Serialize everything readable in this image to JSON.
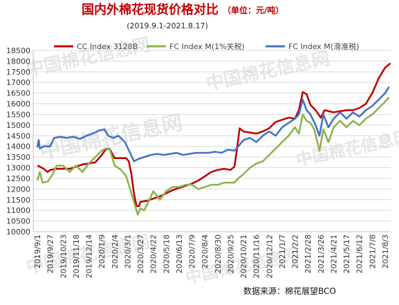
{
  "chart_data": {
    "type": "line",
    "title": "国内外棉花现货价格对比",
    "unit": "（单位：元/吨）",
    "subtitle": "(2019.9.1-2021.8.17)",
    "source": "数据来源：棉花展望BCO",
    "watermark": "中国棉花信息网",
    "ylim": [
      10000,
      18500
    ],
    "yticks": [
      10000,
      10500,
      11000,
      11500,
      12000,
      12500,
      13000,
      13500,
      14000,
      14500,
      15000,
      15500,
      16000,
      16500,
      17000,
      17500,
      18000,
      18500
    ],
    "x_tick_labels": [
      "2019/9/1",
      "2019/9/27",
      "2019/10/23",
      "2019/11/18",
      "2019/12/14",
      "2020/1/9",
      "2020/2/4",
      "2020/3/1",
      "2020/3/27",
      "2020/4/22",
      "2020/5/18",
      "2020/6/13",
      "2020/7/9",
      "2020/8/4",
      "2020/8/30",
      "2020/9/25",
      "2020/10/21",
      "2020/11/16",
      "2020/12/12",
      "2021/1/7",
      "2021/2/2",
      "2021/2/28",
      "2021/3/26",
      "2021/4/21",
      "2021/5/17",
      "2021/6/12",
      "2021/7/8",
      "2021/8/3"
    ],
    "grid": true,
    "legend_position": "top",
    "series": [
      {
        "name": "CC Index 3128B",
        "color": "#c00000",
        "points": [
          [
            0,
            13100
          ],
          [
            0.2,
            13050
          ],
          [
            0.5,
            12950
          ],
          [
            0.8,
            12800
          ],
          [
            1.0,
            12900
          ],
          [
            1.5,
            12950
          ],
          [
            2.0,
            12950
          ],
          [
            2.5,
            12950
          ],
          [
            3.0,
            13050
          ],
          [
            3.5,
            13150
          ],
          [
            4.0,
            13200
          ],
          [
            4.5,
            13250
          ],
          [
            5.0,
            13600
          ],
          [
            5.3,
            13850
          ],
          [
            5.6,
            13900
          ],
          [
            6.0,
            13450
          ],
          [
            6.5,
            13450
          ],
          [
            6.9,
            13450
          ],
          [
            7.1,
            13300
          ],
          [
            7.3,
            12700
          ],
          [
            7.5,
            11800
          ],
          [
            7.7,
            11200
          ],
          [
            7.9,
            11200
          ],
          [
            8.0,
            11400
          ],
          [
            8.5,
            11450
          ],
          [
            9.0,
            11550
          ],
          [
            9.5,
            11650
          ],
          [
            10.0,
            11800
          ],
          [
            10.5,
            11950
          ],
          [
            11.0,
            12050
          ],
          [
            11.5,
            12150
          ],
          [
            12.0,
            12250
          ],
          [
            12.5,
            12400
          ],
          [
            13.0,
            12600
          ],
          [
            13.5,
            12800
          ],
          [
            14.0,
            12900
          ],
          [
            14.5,
            12950
          ],
          [
            15.0,
            12900
          ],
          [
            15.3,
            13050
          ],
          [
            15.5,
            13900
          ],
          [
            15.7,
            14850
          ],
          [
            16.0,
            14700
          ],
          [
            16.5,
            14650
          ],
          [
            17.0,
            14600
          ],
          [
            17.5,
            14700
          ],
          [
            18.0,
            14850
          ],
          [
            18.5,
            15150
          ],
          [
            19.0,
            15250
          ],
          [
            19.5,
            15350
          ],
          [
            20.0,
            15300
          ],
          [
            20.3,
            15700
          ],
          [
            20.6,
            16550
          ],
          [
            20.9,
            16450
          ],
          [
            21.2,
            15950
          ],
          [
            21.6,
            15700
          ],
          [
            22.0,
            15350
          ],
          [
            22.3,
            15700
          ],
          [
            22.6,
            15650
          ],
          [
            23.0,
            15600
          ],
          [
            23.5,
            15650
          ],
          [
            24.0,
            15700
          ],
          [
            24.5,
            15700
          ],
          [
            25.0,
            15800
          ],
          [
            25.5,
            16000
          ],
          [
            26.0,
            16500
          ],
          [
            26.5,
            17200
          ],
          [
            27.0,
            17700
          ],
          [
            27.4,
            17900
          ]
        ]
      },
      {
        "name": "FC Index M(1%关税)",
        "color": "#8cb34e",
        "points": [
          [
            0,
            12400
          ],
          [
            0.2,
            12800
          ],
          [
            0.4,
            12300
          ],
          [
            0.8,
            12350
          ],
          [
            1.2,
            12700
          ],
          [
            1.5,
            13100
          ],
          [
            2.0,
            13100
          ],
          [
            2.5,
            12800
          ],
          [
            3.0,
            13100
          ],
          [
            3.5,
            12800
          ],
          [
            4.0,
            13200
          ],
          [
            4.5,
            13500
          ],
          [
            5.0,
            13800
          ],
          [
            5.3,
            13900
          ],
          [
            5.6,
            13900
          ],
          [
            6.0,
            13100
          ],
          [
            6.5,
            12900
          ],
          [
            6.9,
            12600
          ],
          [
            7.2,
            12000
          ],
          [
            7.5,
            11400
          ],
          [
            7.8,
            10800
          ],
          [
            8.0,
            11100
          ],
          [
            8.3,
            11000
          ],
          [
            8.7,
            11500
          ],
          [
            9.0,
            11900
          ],
          [
            9.5,
            11500
          ],
          [
            10.0,
            11900
          ],
          [
            10.5,
            12100
          ],
          [
            11.0,
            12100
          ],
          [
            11.5,
            12200
          ],
          [
            12.0,
            12200
          ],
          [
            12.5,
            12000
          ],
          [
            13.0,
            12100
          ],
          [
            13.5,
            12200
          ],
          [
            14.0,
            12200
          ],
          [
            14.5,
            12300
          ],
          [
            15.0,
            12300
          ],
          [
            15.3,
            12300
          ],
          [
            15.6,
            12500
          ],
          [
            16.0,
            12700
          ],
          [
            16.5,
            13000
          ],
          [
            17.0,
            13200
          ],
          [
            17.5,
            13300
          ],
          [
            18.0,
            13600
          ],
          [
            18.5,
            13900
          ],
          [
            19.0,
            14200
          ],
          [
            19.5,
            14500
          ],
          [
            20.0,
            14900
          ],
          [
            20.3,
            14600
          ],
          [
            20.6,
            15500
          ],
          [
            20.9,
            15200
          ],
          [
            21.2,
            15100
          ],
          [
            21.5,
            14800
          ],
          [
            21.9,
            13800
          ],
          [
            22.2,
            14800
          ],
          [
            22.6,
            14200
          ],
          [
            23.0,
            14900
          ],
          [
            23.5,
            15200
          ],
          [
            24.0,
            14900
          ],
          [
            24.5,
            15200
          ],
          [
            25.0,
            15000
          ],
          [
            25.5,
            15300
          ],
          [
            26.0,
            15500
          ],
          [
            26.5,
            15800
          ],
          [
            27.0,
            16100
          ],
          [
            27.3,
            16300
          ]
        ]
      },
      {
        "name": "FC Index M(滑准税)",
        "color": "#4472c4",
        "points": [
          [
            0,
            13950
          ],
          [
            0.1,
            14300
          ],
          [
            0.2,
            13900
          ],
          [
            0.5,
            14000
          ],
          [
            1.0,
            14000
          ],
          [
            1.3,
            14400
          ],
          [
            1.8,
            14450
          ],
          [
            2.3,
            14400
          ],
          [
            2.8,
            14450
          ],
          [
            3.3,
            14350
          ],
          [
            3.8,
            14500
          ],
          [
            4.3,
            14600
          ],
          [
            4.8,
            14750
          ],
          [
            5.2,
            14800
          ],
          [
            5.5,
            14500
          ],
          [
            5.9,
            14400
          ],
          [
            6.3,
            14500
          ],
          [
            6.8,
            14200
          ],
          [
            7.2,
            13700
          ],
          [
            7.5,
            13300
          ],
          [
            7.8,
            13400
          ],
          [
            8.3,
            13500
          ],
          [
            8.8,
            13600
          ],
          [
            9.3,
            13650
          ],
          [
            9.8,
            13600
          ],
          [
            10.3,
            13650
          ],
          [
            10.8,
            13700
          ],
          [
            11.3,
            13600
          ],
          [
            11.8,
            13650
          ],
          [
            12.3,
            13700
          ],
          [
            12.8,
            13700
          ],
          [
            13.3,
            13700
          ],
          [
            13.8,
            13750
          ],
          [
            14.3,
            13700
          ],
          [
            14.8,
            13850
          ],
          [
            15.3,
            13800
          ],
          [
            15.6,
            14000
          ],
          [
            16.0,
            14300
          ],
          [
            16.5,
            14400
          ],
          [
            17.0,
            14200
          ],
          [
            17.5,
            14500
          ],
          [
            18.0,
            14700
          ],
          [
            18.5,
            14500
          ],
          [
            19.0,
            14900
          ],
          [
            19.5,
            15100
          ],
          [
            20.0,
            15300
          ],
          [
            20.3,
            15500
          ],
          [
            20.6,
            16200
          ],
          [
            20.9,
            15700
          ],
          [
            21.2,
            15500
          ],
          [
            21.6,
            15000
          ],
          [
            21.9,
            14500
          ],
          [
            22.2,
            15500
          ],
          [
            22.6,
            14900
          ],
          [
            23.0,
            15300
          ],
          [
            23.5,
            15600
          ],
          [
            24.0,
            15300
          ],
          [
            24.5,
            15600
          ],
          [
            25.0,
            15400
          ],
          [
            25.5,
            15700
          ],
          [
            26.0,
            15900
          ],
          [
            26.5,
            16200
          ],
          [
            27.0,
            16500
          ],
          [
            27.3,
            16800
          ]
        ]
      }
    ]
  }
}
